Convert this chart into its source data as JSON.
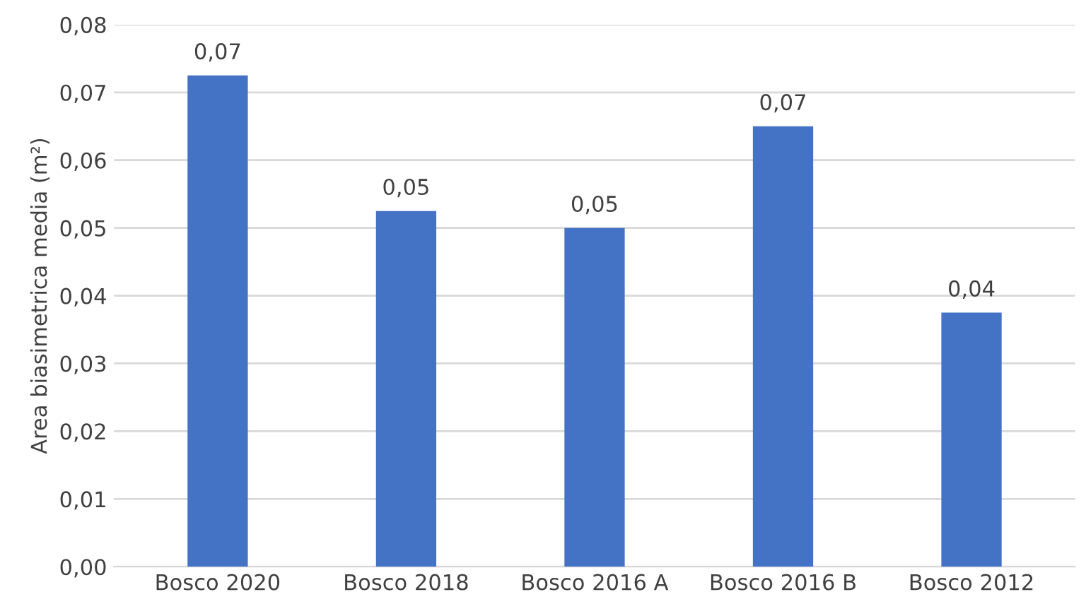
{
  "chart_data": {
    "type": "bar",
    "ylabel": "Area biasimetrica media (m²)",
    "categories": [
      "Bosco 2020",
      "Bosco 2018",
      "Bosco 2016 A",
      "Bosco 2016 B",
      "Bosco 2012"
    ],
    "values": [
      0.0725,
      0.0525,
      0.05,
      0.065,
      0.0375
    ],
    "value_labels": [
      "0,07",
      "0,05",
      "0,05",
      "0,07",
      "0,04"
    ],
    "color": "#4472c4",
    "ylim": [
      0,
      0.08
    ],
    "yticks": [
      {
        "value": 0,
        "label": "0,00"
      },
      {
        "value": 0.01,
        "label": "0,01"
      },
      {
        "value": 0.02,
        "label": "0,02"
      },
      {
        "value": 0.03,
        "label": "0,03"
      },
      {
        "value": 0.04,
        "label": "0,04"
      },
      {
        "value": 0.05,
        "label": "0,05"
      },
      {
        "value": 0.06,
        "label": "0,06"
      },
      {
        "value": 0.07,
        "label": "0,07"
      },
      {
        "value": 0.08,
        "label": "0,08"
      }
    ],
    "grid": "y"
  }
}
